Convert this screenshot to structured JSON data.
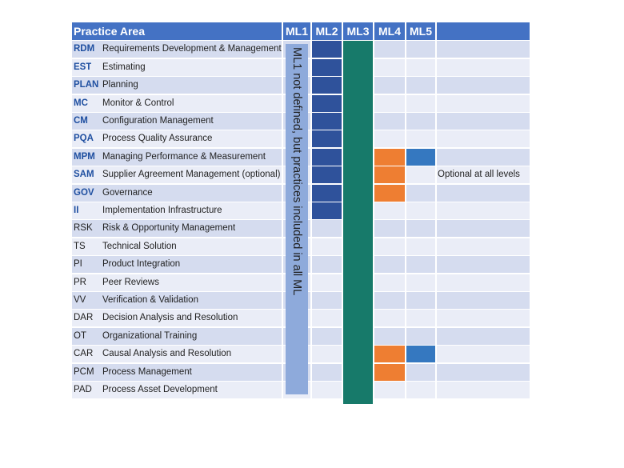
{
  "header": {
    "practice_area": "Practice Area",
    "levels": [
      "ML1",
      "ML2",
      "ML3",
      "ML4",
      "ML5"
    ]
  },
  "ml1_note": "ML1 not defined, but practices included in all ML",
  "colors": {
    "header": "#4472c4",
    "ml1_band": "#8eaadb",
    "ml2": "#2f529b",
    "ml3": "#177a6a",
    "ml4": "#ee7e32",
    "ml5": "#3578c0",
    "row_odd": "#d5dcef",
    "row_even": "#eaedf7"
  },
  "rows": [
    {
      "abbr": "RDM",
      "name": "Requirements Development & Management",
      "abbr_style": "blue",
      "levels": [
        2,
        3
      ],
      "note": ""
    },
    {
      "abbr": "EST",
      "name": "Estimating",
      "abbr_style": "blue",
      "levels": [
        2,
        3
      ],
      "note": ""
    },
    {
      "abbr": "PLAN",
      "name": "Planning",
      "abbr_style": "blue",
      "levels": [
        2,
        3
      ],
      "note": ""
    },
    {
      "abbr": "MC",
      "name": "Monitor & Control",
      "abbr_style": "blue",
      "levels": [
        2,
        3
      ],
      "note": ""
    },
    {
      "abbr": "CM",
      "name": "Configuration Management",
      "abbr_style": "blue",
      "levels": [
        2,
        3
      ],
      "note": ""
    },
    {
      "abbr": "PQA",
      "name": "Process Quality Assurance",
      "abbr_style": "blue",
      "levels": [
        2,
        3
      ],
      "note": ""
    },
    {
      "abbr": "MPM",
      "name": "Managing Performance & Measurement",
      "abbr_style": "blue",
      "levels": [
        2,
        3,
        4,
        5
      ],
      "note": ""
    },
    {
      "abbr": "SAM",
      "name": "Supplier Agreement Management (optional)",
      "abbr_style": "blue",
      "levels": [
        2,
        3,
        4
      ],
      "note": "Optional at all levels"
    },
    {
      "abbr": "GOV",
      "name": "Governance",
      "abbr_style": "blue",
      "levels": [
        2,
        3,
        4
      ],
      "note": ""
    },
    {
      "abbr": "II",
      "name": "Implementation Infrastructure",
      "abbr_style": "blue",
      "levels": [
        2,
        3
      ],
      "note": ""
    },
    {
      "abbr": "RSK",
      "name": "Risk & Opportunity Management",
      "abbr_style": "dark",
      "levels": [
        3
      ],
      "note": ""
    },
    {
      "abbr": "TS",
      "name": "Technical Solution",
      "abbr_style": "dark",
      "levels": [
        3
      ],
      "note": ""
    },
    {
      "abbr": "PI",
      "name": "Product Integration",
      "abbr_style": "dark",
      "levels": [
        3
      ],
      "note": ""
    },
    {
      "abbr": "PR",
      "name": "Peer Reviews",
      "abbr_style": "dark",
      "levels": [
        3
      ],
      "note": ""
    },
    {
      "abbr": "VV",
      "name": "Verification & Validation",
      "abbr_style": "dark",
      "levels": [
        3
      ],
      "note": ""
    },
    {
      "abbr": "DAR",
      "name": "Decision Analysis and Resolution",
      "abbr_style": "dark",
      "levels": [
        3
      ],
      "note": ""
    },
    {
      "abbr": "OT",
      "name": "Organizational Training",
      "abbr_style": "dark",
      "levels": [
        3
      ],
      "note": ""
    },
    {
      "abbr": "CAR",
      "name": "Causal Analysis and Resolution",
      "abbr_style": "dark",
      "levels": [
        3,
        4,
        5
      ],
      "note": ""
    },
    {
      "abbr": "PCM",
      "name": "Process Management",
      "abbr_style": "dark",
      "levels": [
        3,
        4
      ],
      "note": ""
    },
    {
      "abbr": "PAD",
      "name": "Process Asset Development",
      "abbr_style": "dark",
      "levels": [
        3
      ],
      "note": ""
    }
  ]
}
